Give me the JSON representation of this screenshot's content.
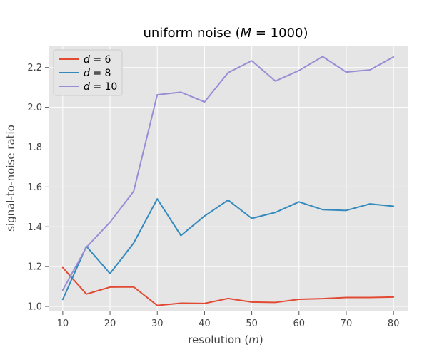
{
  "chart_data": {
    "type": "line",
    "title": "uniform noise (M = 1000)",
    "title_parts": [
      "uniform noise (",
      "M",
      " = 1000)"
    ],
    "xlabel": "resolution (m)",
    "xlabel_parts": [
      "resolution (",
      "m",
      ")"
    ],
    "ylabel": "signal-to-noise ratio",
    "xlim": [
      7,
      83
    ],
    "ylim": [
      0.975,
      2.31
    ],
    "xticks": [
      10,
      20,
      30,
      40,
      50,
      60,
      70,
      80
    ],
    "yticks": [
      1.0,
      1.2,
      1.4,
      1.6,
      1.8,
      2.0,
      2.2
    ],
    "grid": true,
    "legend_position": "top-left",
    "x": [
      10,
      15,
      20,
      25,
      30,
      35,
      40,
      45,
      50,
      55,
      60,
      65,
      70,
      75,
      80
    ],
    "series": [
      {
        "name": "d = 6",
        "name_parts": [
          "d",
          " = 6"
        ],
        "color": "#E24A33",
        "values": [
          1.195,
          1.062,
          1.097,
          1.098,
          1.005,
          1.016,
          1.015,
          1.04,
          1.022,
          1.02,
          1.036,
          1.039,
          1.045,
          1.045,
          1.047
        ]
      },
      {
        "name": "d = 8",
        "name_parts": [
          "d",
          " = 8"
        ],
        "color": "#348ABD",
        "values": [
          1.035,
          1.302,
          1.165,
          1.318,
          1.54,
          1.356,
          1.454,
          1.534,
          1.442,
          1.472,
          1.525,
          1.486,
          1.482,
          1.515,
          1.503
        ]
      },
      {
        "name": "d = 10",
        "name_parts": [
          "d",
          " = 10"
        ],
        "color": "#988ED5",
        "values": [
          1.082,
          1.297,
          1.423,
          1.578,
          2.063,
          2.076,
          2.027,
          2.174,
          2.234,
          2.132,
          2.185,
          2.255,
          2.177,
          2.188,
          2.253
        ]
      }
    ]
  }
}
